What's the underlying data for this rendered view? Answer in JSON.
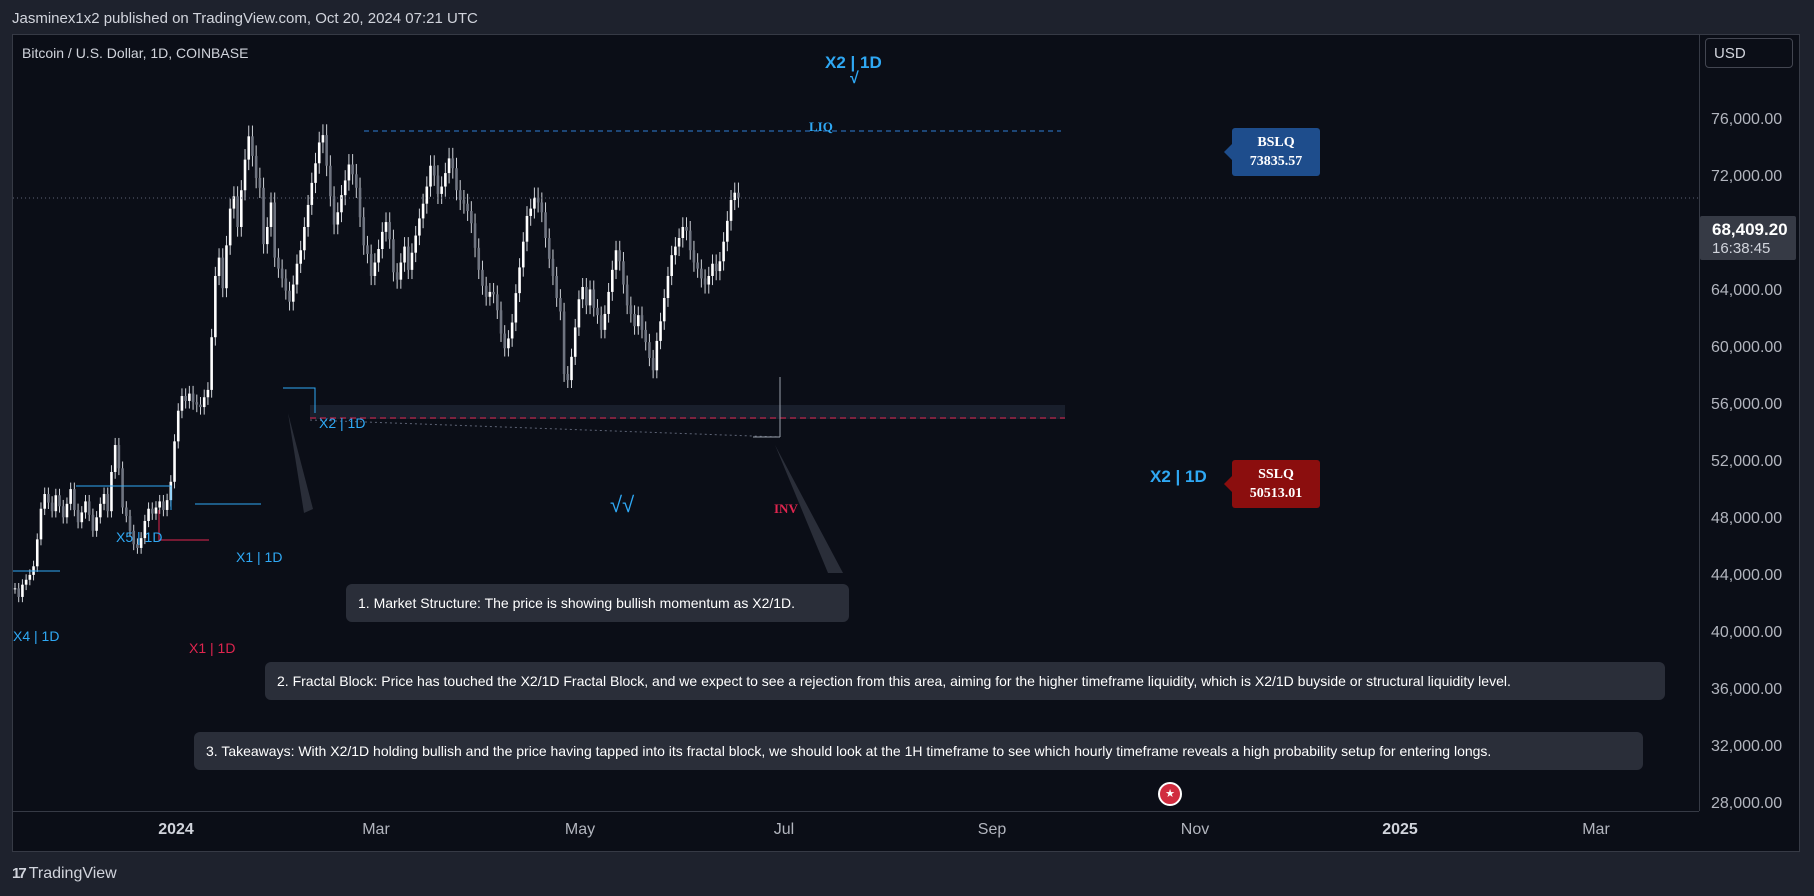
{
  "header": {
    "publisher": "Jasminex1x2 published on TradingView.com, Oct 20, 2024 07:21 UTC"
  },
  "chart": {
    "symbol": "Bitcoin / U.S. Dollar, 1D, COINBASE",
    "currency": "USD",
    "last_price": "68,409.20",
    "countdown": "16:38:45"
  },
  "y_axis": {
    "labels": [
      "76,000.00",
      "72,000.00",
      "64,000.00",
      "60,000.00",
      "56,000.00",
      "52,000.00",
      "48,000.00",
      "44,000.00",
      "40,000.00",
      "36,000.00",
      "32,000.00",
      "28,000.00"
    ]
  },
  "x_axis": {
    "labels": [
      "2024",
      "Mar",
      "May",
      "Jul",
      "Sep",
      "Nov",
      "2025",
      "Mar"
    ]
  },
  "annotations": {
    "top_tag": "X2 | 1D",
    "top_check": "√",
    "liq": "LIQ",
    "bslq_title": "BSLQ",
    "bslq_value": "73835.57",
    "sslq_title": "SSLQ",
    "sslq_value": "50513.01",
    "x2_right": "X2 | 1D",
    "x2_left": "X2 | 1D",
    "x5": "X5 | 1D",
    "x1_blue": "X1 | 1D",
    "x1_red": "X1 | 1D",
    "x4": "X4 | 1D",
    "checks": "√√",
    "inv": "INV"
  },
  "notes": [
    "1. Market Structure: The price is showing bullish momentum as X2/1D.",
    "2. Fractal Block: Price has touched the X2/1D Fractal Block, and we expect to see a rejection from this area, aiming for the higher timeframe liquidity, which is X2/1D buyside or structural liquidity level.",
    "3. Takeaways: With X2/1D holding bullish and the price having tapped into its fractal block, we should look at the 1H timeframe to see which hourly timeframe reveals a high probability setup for entering longs."
  ],
  "footer": {
    "brand": "TradingView",
    "brand_icon": "tradingview-logo-icon"
  },
  "colors": {
    "background": "#0b0e17",
    "accent_blue": "#2fa8f4",
    "accent_red": "#e0254f",
    "bslq": "#1e4d8c",
    "sslq": "#8b0e0e"
  },
  "series_path": [
    62600,
    61800,
    60800,
    59900,
    61300,
    63000,
    64100,
    66000,
    67800,
    69600,
    71200,
    72900,
    73500,
    71000,
    68500,
    66200,
    67200,
    68600,
    69800,
    71100,
    70300,
    69200,
    66800,
    64500,
    63800,
    62000,
    63100,
    64200,
    65600,
    66400,
    65000,
    62300,
    61700,
    63100,
    64400,
    62500,
    63900,
    65300,
    66700,
    67900,
    69300,
    71000,
    70200,
    68700,
    69300,
    70400,
    71600,
    70800,
    69000,
    68200,
    67900,
    67300,
    66300,
    64300,
    62500,
    61200,
    60300,
    60700,
    60500,
    59200,
    57300,
    56100,
    56900,
    58200,
    60600,
    62700,
    64800,
    66900,
    67500,
    68400,
    68000,
    67200,
    65100,
    63400,
    62000,
    60200,
    59100,
    54000,
    53500,
    55400,
    57800,
    60100,
    61100,
    59600,
    60900,
    59400,
    58800,
    57600,
    58900,
    60700,
    62500,
    64100,
    63200,
    61300,
    59600,
    58900,
    57900,
    58800,
    57600,
    56600,
    55300,
    54300,
    56700,
    58300,
    60200,
    62000,
    63700,
    64400,
    65100,
    66000,
    65700,
    64100,
    63100,
    62600,
    61800,
    61300,
    62000,
    63000,
    62400,
    63200,
    64800,
    66500,
    68200,
    68800,
    68400
  ]
}
